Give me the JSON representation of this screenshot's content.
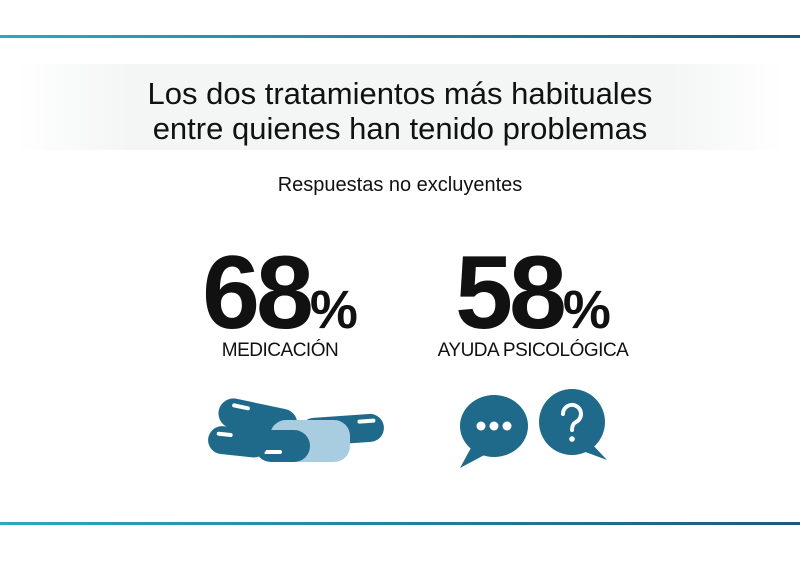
{
  "header": {
    "title_lines": [
      "Los dos tratamientos más habituales",
      "entre quienes han tenido problemas"
    ],
    "subtitle": "Respuestas no excluyentes"
  },
  "stats": [
    {
      "value": 68,
      "unit": "%",
      "label": "MEDICACIÓN"
    },
    {
      "value": 58,
      "unit": "%",
      "label": "AYUDA PSICOLÓGICA"
    }
  ]
}
